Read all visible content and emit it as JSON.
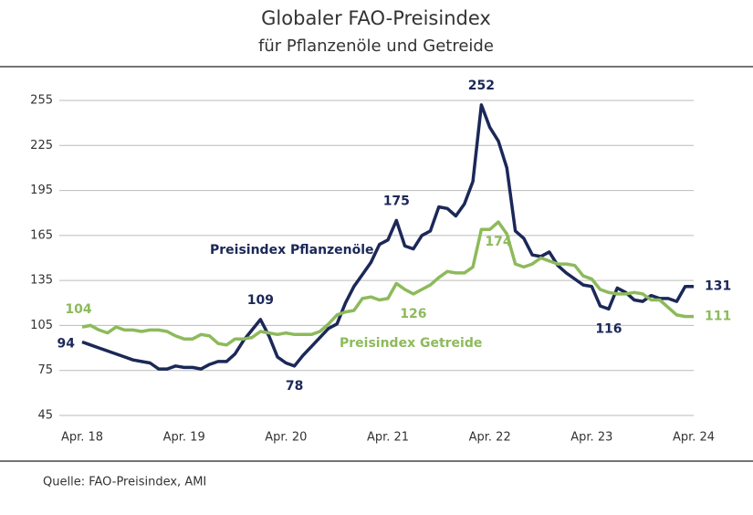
{
  "chart_data": {
    "type": "line",
    "title": "Globaler FAO-Preisindex",
    "subtitle": "für Pflanzenöle und Getreide",
    "source": "Quelle: FAO-Preisindex, AMI",
    "categories": [
      "Apr. 18",
      null,
      null,
      null,
      null,
      null,
      null,
      null,
      null,
      null,
      null,
      null,
      "Apr. 19",
      null,
      null,
      null,
      null,
      null,
      null,
      null,
      null,
      null,
      null,
      null,
      "Apr. 20",
      null,
      null,
      null,
      null,
      null,
      null,
      null,
      null,
      null,
      null,
      null,
      "Apr. 21",
      null,
      null,
      null,
      null,
      null,
      null,
      null,
      null,
      null,
      null,
      null,
      "Apr. 22",
      null,
      null,
      null,
      null,
      null,
      null,
      null,
      null,
      null,
      null,
      null,
      "Apr. 23",
      null,
      null,
      null,
      null,
      null,
      null,
      null,
      null,
      null,
      null,
      null,
      "Apr. 24"
    ],
    "series": [
      {
        "name": "Preisindex Pflanzenöle",
        "color": "#1b2858",
        "values": [
          94,
          92,
          90,
          88,
          86,
          84,
          82,
          81,
          80,
          76,
          76,
          78,
          77,
          77,
          76,
          79,
          81,
          81,
          86,
          95,
          102,
          109,
          98,
          84,
          80,
          78,
          85,
          91,
          97,
          103,
          106,
          120,
          131,
          139,
          147,
          159,
          162,
          175,
          158,
          156,
          165,
          168,
          184,
          183,
          178,
          186,
          201,
          252,
          237,
          228,
          210,
          168,
          163,
          152,
          151,
          154,
          145,
          140,
          136,
          132,
          131,
          118,
          116,
          130,
          127,
          122,
          121,
          125,
          123,
          123,
          121,
          131,
          131
        ],
        "value_labels": [
          "94",
          null,
          null,
          null,
          null,
          null,
          null,
          null,
          null,
          null,
          null,
          null,
          null,
          null,
          null,
          null,
          null,
          null,
          null,
          null,
          null,
          "109",
          null,
          null,
          null,
          "78",
          null,
          null,
          null,
          null,
          null,
          null,
          null,
          null,
          null,
          null,
          null,
          "175",
          null,
          null,
          null,
          null,
          null,
          null,
          null,
          null,
          null,
          "252",
          null,
          null,
          null,
          null,
          null,
          null,
          null,
          null,
          null,
          null,
          null,
          null,
          null,
          null,
          "116",
          null,
          null,
          null,
          null,
          null,
          null,
          null,
          null,
          null,
          "131"
        ]
      },
      {
        "name": "Preisindex Getreide",
        "color": "#8dba5b",
        "values": [
          104,
          105,
          102,
          100,
          104,
          102,
          102,
          101,
          102,
          102,
          101,
          98,
          96,
          96,
          99,
          98,
          93,
          92,
          96,
          96,
          97,
          101,
          100,
          99,
          100,
          99,
          99,
          99,
          101,
          106,
          112,
          114,
          115,
          123,
          124,
          122,
          123,
          133,
          129,
          126,
          129,
          132,
          137,
          141,
          140,
          140,
          144,
          169,
          169,
          174,
          166,
          146,
          144,
          146,
          150,
          148,
          146,
          146,
          145,
          138,
          136,
          129,
          127,
          126,
          126,
          127,
          126,
          122,
          122,
          117,
          112,
          111,
          111
        ],
        "value_labels": [
          "104",
          null,
          null,
          null,
          null,
          null,
          null,
          null,
          null,
          null,
          null,
          null,
          null,
          null,
          null,
          null,
          null,
          null,
          null,
          null,
          null,
          null,
          null,
          null,
          null,
          null,
          null,
          null,
          null,
          null,
          null,
          null,
          null,
          null,
          null,
          null,
          null,
          null,
          null,
          "126",
          null,
          null,
          null,
          null,
          null,
          null,
          null,
          null,
          null,
          "174",
          null,
          null,
          null,
          null,
          null,
          null,
          null,
          null,
          null,
          null,
          null,
          null,
          null,
          null,
          null,
          null,
          null,
          null,
          null,
          null,
          null,
          null,
          "111"
        ]
      }
    ],
    "ylim": [
      45,
      255
    ],
    "yticks": [
      45,
      75,
      105,
      135,
      165,
      195,
      225,
      255
    ],
    "grid": true
  }
}
